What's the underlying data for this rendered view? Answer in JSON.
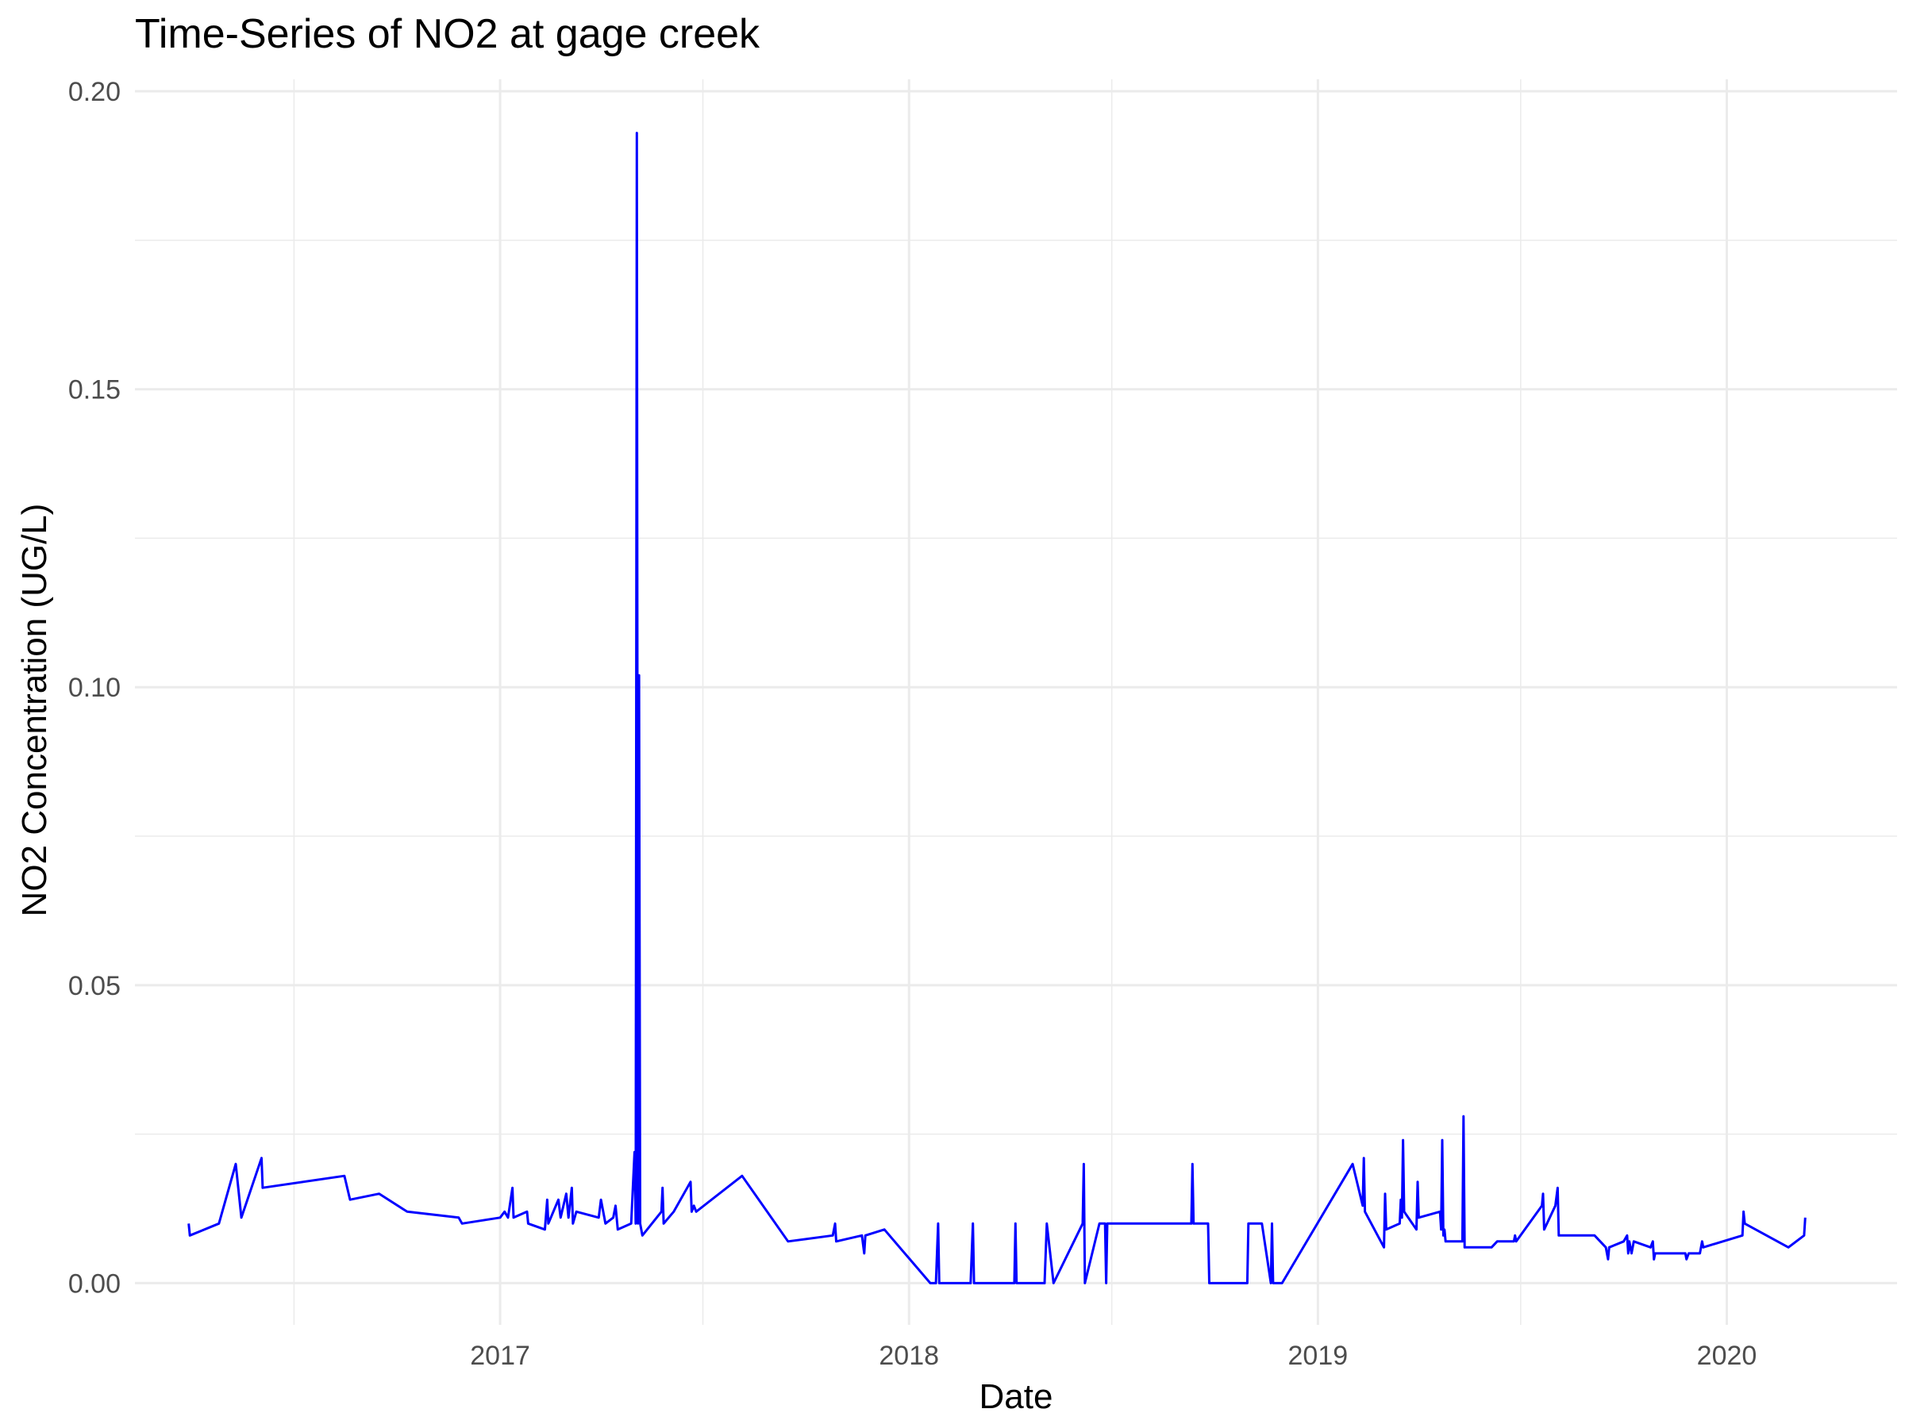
{
  "chart_data": {
    "type": "line",
    "title": "Time-Series of NO2 at gage creek",
    "xlabel": "Date",
    "ylabel": "NO2 Concentration (UG/L)",
    "xlim": [
      "2016-02-10",
      "2020-06-01"
    ],
    "ylim": [
      -0.007,
      0.202
    ],
    "x_ticks": [
      {
        "value": "2017-01-01",
        "label": "2017"
      },
      {
        "value": "2018-01-01",
        "label": "2018"
      },
      {
        "value": "2019-01-01",
        "label": "2019"
      },
      {
        "value": "2020-01-01",
        "label": "2020"
      }
    ],
    "x_minor_ticks": [
      "2016-07-01",
      "2017-07-01",
      "2018-07-01",
      "2019-07-01"
    ],
    "y_ticks": [
      {
        "value": 0.0,
        "label": "0.00"
      },
      {
        "value": 0.05,
        "label": "0.05"
      },
      {
        "value": 0.1,
        "label": "0.10"
      },
      {
        "value": 0.15,
        "label": "0.15"
      },
      {
        "value": 0.2,
        "label": "0.20"
      }
    ],
    "y_minor_ticks": [
      0.025,
      0.075,
      0.125,
      0.175
    ],
    "grid": true,
    "legend": "none",
    "series": [
      {
        "color": "#0000ff",
        "points": [
          [
            "2016-03-29",
            0.01
          ],
          [
            "2016-03-30",
            0.008
          ],
          [
            "2016-04-25",
            0.01
          ],
          [
            "2016-05-10",
            0.02
          ],
          [
            "2016-05-15",
            0.011
          ],
          [
            "2016-06-02",
            0.021
          ],
          [
            "2016-06-03",
            0.016
          ],
          [
            "2016-08-15",
            0.018
          ],
          [
            "2016-08-20",
            0.014
          ],
          [
            "2016-09-15",
            0.015
          ],
          [
            "2016-10-10",
            0.012
          ],
          [
            "2016-11-25",
            0.011
          ],
          [
            "2016-11-28",
            0.01
          ],
          [
            "2017-01-01",
            0.011
          ],
          [
            "2017-01-05",
            0.012
          ],
          [
            "2017-01-08",
            0.011
          ],
          [
            "2017-01-12",
            0.016
          ],
          [
            "2017-01-13",
            0.011
          ],
          [
            "2017-01-25",
            0.012
          ],
          [
            "2017-01-26",
            0.01
          ],
          [
            "2017-02-10",
            0.009
          ],
          [
            "2017-02-12",
            0.014
          ],
          [
            "2017-02-13",
            0.01
          ],
          [
            "2017-02-22",
            0.014
          ],
          [
            "2017-02-24",
            0.011
          ],
          [
            "2017-03-01",
            0.015
          ],
          [
            "2017-03-03",
            0.011
          ],
          [
            "2017-03-06",
            0.016
          ],
          [
            "2017-03-07",
            0.01
          ],
          [
            "2017-03-10",
            0.012
          ],
          [
            "2017-03-30",
            0.011
          ],
          [
            "2017-04-01",
            0.014
          ],
          [
            "2017-04-05",
            0.01
          ],
          [
            "2017-04-12",
            0.011
          ],
          [
            "2017-04-14",
            0.013
          ],
          [
            "2017-04-16",
            0.009
          ],
          [
            "2017-04-28",
            0.01
          ],
          [
            "2017-05-01",
            0.022
          ],
          [
            "2017-05-02",
            0.01
          ],
          [
            "2017-05-03",
            0.193
          ],
          [
            "2017-05-04",
            0.01
          ],
          [
            "2017-05-05",
            0.102
          ],
          [
            "2017-05-06",
            0.01
          ],
          [
            "2017-05-08",
            0.008
          ],
          [
            "2017-05-25",
            0.012
          ],
          [
            "2017-05-26",
            0.016
          ],
          [
            "2017-05-27",
            0.01
          ],
          [
            "2017-06-05",
            0.012
          ],
          [
            "2017-06-20",
            0.017
          ],
          [
            "2017-06-21",
            0.012
          ],
          [
            "2017-06-23",
            0.013
          ],
          [
            "2017-06-25",
            0.012
          ],
          [
            "2017-08-05",
            0.018
          ],
          [
            "2017-09-15",
            0.007
          ],
          [
            "2017-10-25",
            0.008
          ],
          [
            "2017-10-27",
            0.01
          ],
          [
            "2017-10-28",
            0.007
          ],
          [
            "2017-11-20",
            0.008
          ],
          [
            "2017-11-22",
            0.005
          ],
          [
            "2017-11-23",
            0.008
          ],
          [
            "2017-12-10",
            0.009
          ],
          [
            "2018-01-20",
            0.0
          ],
          [
            "2018-01-25",
            0.0
          ],
          [
            "2018-01-27",
            0.01
          ],
          [
            "2018-01-28",
            0.0
          ],
          [
            "2018-02-25",
            0.0
          ],
          [
            "2018-02-27",
            0.01
          ],
          [
            "2018-02-28",
            0.0
          ],
          [
            "2018-04-05",
            0.0
          ],
          [
            "2018-04-06",
            0.01
          ],
          [
            "2018-04-07",
            0.0
          ],
          [
            "2018-05-02",
            0.0
          ],
          [
            "2018-05-04",
            0.01
          ],
          [
            "2018-05-10",
            0.0
          ],
          [
            "2018-06-05",
            0.01
          ],
          [
            "2018-06-06",
            0.02
          ],
          [
            "2018-06-07",
            0.0
          ],
          [
            "2018-06-20",
            0.01
          ],
          [
            "2018-06-25",
            0.01
          ],
          [
            "2018-06-26",
            0.0
          ],
          [
            "2018-06-27",
            0.01
          ],
          [
            "2018-09-10",
            0.01
          ],
          [
            "2018-09-11",
            0.02
          ],
          [
            "2018-09-12",
            0.01
          ],
          [
            "2018-09-25",
            0.01
          ],
          [
            "2018-09-26",
            0.0
          ],
          [
            "2018-10-30",
            0.0
          ],
          [
            "2018-10-31",
            0.01
          ],
          [
            "2018-11-12",
            0.01
          ],
          [
            "2018-11-20",
            0.0
          ],
          [
            "2018-11-21",
            0.01
          ],
          [
            "2018-11-22",
            0.0
          ],
          [
            "2018-11-30",
            0.0
          ],
          [
            "2019-02-01",
            0.02
          ],
          [
            "2019-02-10",
            0.013
          ],
          [
            "2019-02-11",
            0.021
          ],
          [
            "2019-02-12",
            0.012
          ],
          [
            "2019-03-01",
            0.006
          ],
          [
            "2019-03-02",
            0.015
          ],
          [
            "2019-03-03",
            0.009
          ],
          [
            "2019-03-15",
            0.01
          ],
          [
            "2019-03-16",
            0.014
          ],
          [
            "2019-03-17",
            0.011
          ],
          [
            "2019-03-18",
            0.024
          ],
          [
            "2019-03-19",
            0.012
          ],
          [
            "2019-03-30",
            0.009
          ],
          [
            "2019-03-31",
            0.017
          ],
          [
            "2019-04-01",
            0.011
          ],
          [
            "2019-04-20",
            0.012
          ],
          [
            "2019-04-21",
            0.009
          ],
          [
            "2019-04-22",
            0.024
          ],
          [
            "2019-04-23",
            0.008
          ],
          [
            "2019-04-24",
            0.009
          ],
          [
            "2019-04-25",
            0.007
          ],
          [
            "2019-05-10",
            0.007
          ],
          [
            "2019-05-11",
            0.028
          ],
          [
            "2019-05-12",
            0.006
          ],
          [
            "2019-06-05",
            0.006
          ],
          [
            "2019-06-10",
            0.007
          ],
          [
            "2019-06-25",
            0.007
          ],
          [
            "2019-06-26",
            0.008
          ],
          [
            "2019-06-27",
            0.007
          ],
          [
            "2019-07-20",
            0.013
          ],
          [
            "2019-07-21",
            0.015
          ],
          [
            "2019-07-22",
            0.009
          ],
          [
            "2019-08-01",
            0.013
          ],
          [
            "2019-08-03",
            0.016
          ],
          [
            "2019-08-04",
            0.008
          ],
          [
            "2019-09-05",
            0.008
          ],
          [
            "2019-09-15",
            0.006
          ],
          [
            "2019-09-17",
            0.004
          ],
          [
            "2019-09-18",
            0.006
          ],
          [
            "2019-10-01",
            0.007
          ],
          [
            "2019-10-04",
            0.008
          ],
          [
            "2019-10-05",
            0.005
          ],
          [
            "2019-10-06",
            0.007
          ],
          [
            "2019-10-08",
            0.005
          ],
          [
            "2019-10-10",
            0.007
          ],
          [
            "2019-10-25",
            0.006
          ],
          [
            "2019-10-27",
            0.007
          ],
          [
            "2019-10-28",
            0.004
          ],
          [
            "2019-10-29",
            0.005
          ],
          [
            "2019-11-25",
            0.005
          ],
          [
            "2019-11-26",
            0.004
          ],
          [
            "2019-11-28",
            0.005
          ],
          [
            "2019-12-08",
            0.005
          ],
          [
            "2019-12-10",
            0.007
          ],
          [
            "2019-12-11",
            0.006
          ],
          [
            "2020-01-15",
            0.008
          ],
          [
            "2020-01-16",
            0.012
          ],
          [
            "2020-01-17",
            0.01
          ],
          [
            "2020-02-25",
            0.006
          ],
          [
            "2020-03-10",
            0.008
          ],
          [
            "2020-03-11",
            0.011
          ]
        ]
      }
    ]
  }
}
